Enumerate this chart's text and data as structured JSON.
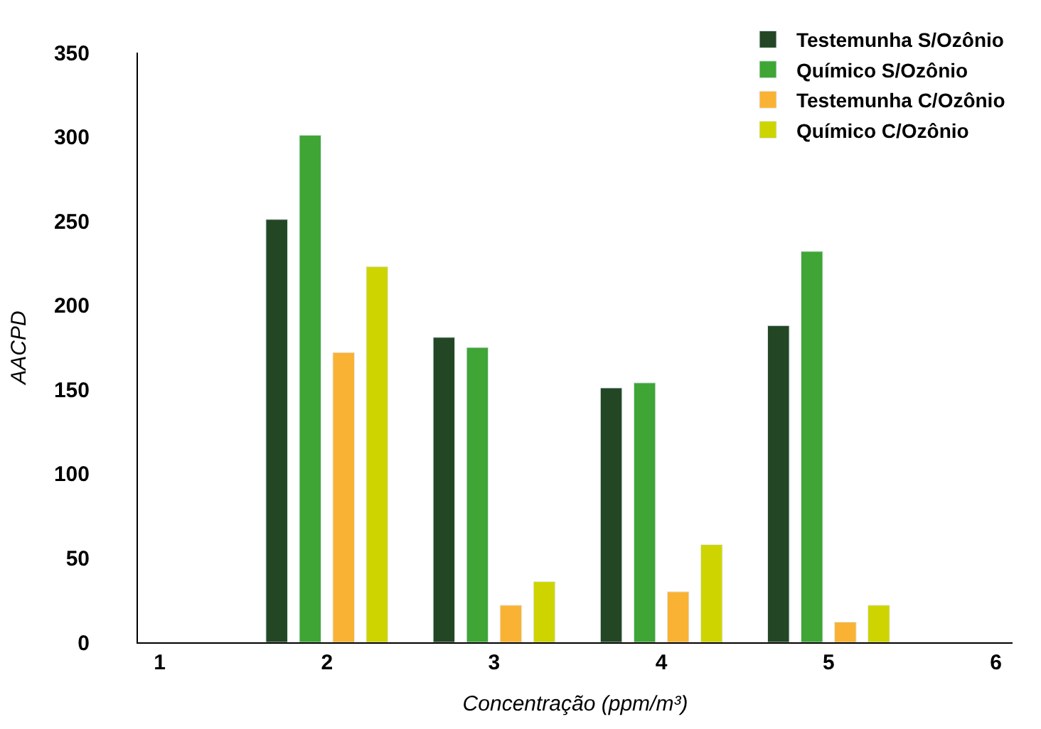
{
  "chart_data": {
    "type": "bar",
    "xlabel": "Concentração (ppm/m³)",
    "ylabel": "AACPD",
    "x": [
      2,
      3,
      4,
      5
    ],
    "series": [
      {
        "name": "Testemunha S/Ozônio",
        "color": "#234724",
        "values": [
          251,
          181,
          151,
          188
        ]
      },
      {
        "name": "Químico S/Ozônio",
        "color": "#3fa535",
        "values": [
          301,
          175,
          154,
          232
        ]
      },
      {
        "name": "Testemunha C/Ozônio",
        "color": "#f9b233",
        "values": [
          172,
          22,
          30,
          12
        ]
      },
      {
        "name": "Químico C/Ozônio",
        "color": "#cdd400",
        "values": [
          223,
          36,
          58,
          22
        ]
      }
    ],
    "xlim": [
      0.87,
      6.1
    ],
    "xticks": [
      1,
      2,
      3,
      4,
      5,
      6
    ],
    "ylim": [
      0,
      350
    ],
    "yticks": [
      0,
      50,
      100,
      150,
      200,
      250,
      300,
      350
    ],
    "legend": "top right"
  }
}
